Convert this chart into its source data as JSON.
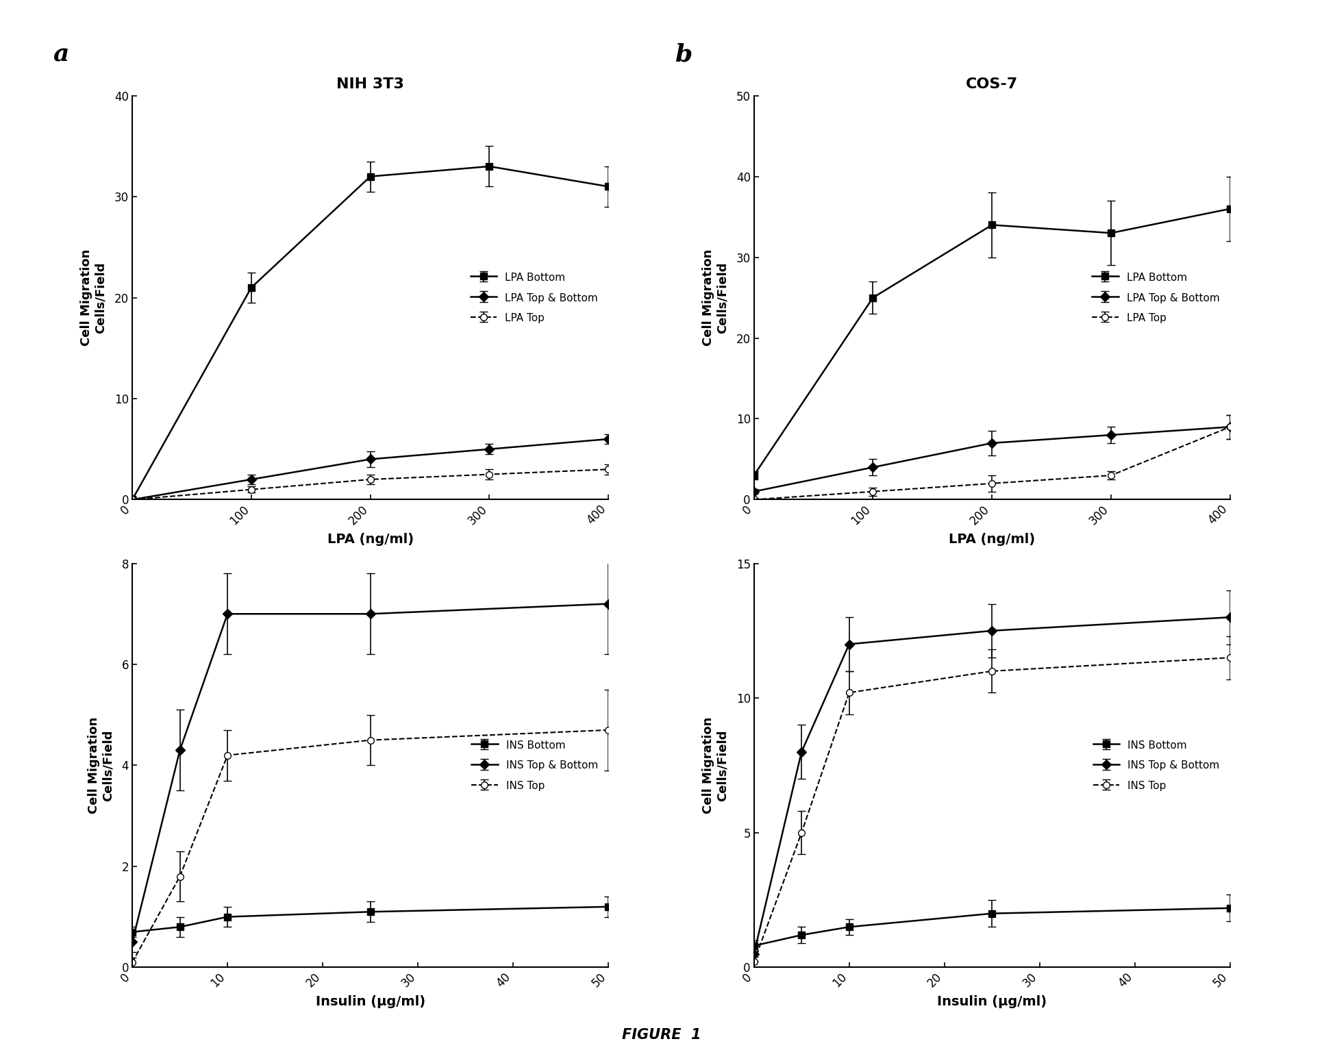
{
  "panel_a_lpa": {
    "title": "NIH 3T3",
    "xlabel": "LPA (ng/ml)",
    "ylabel": "Cell Migration\nCells/Field",
    "xlim": [
      0,
      400
    ],
    "ylim": [
      0,
      40
    ],
    "yticks": [
      0,
      10,
      20,
      30,
      40
    ],
    "xticks": [
      0,
      100,
      200,
      300,
      400
    ],
    "x": [
      0,
      100,
      200,
      300,
      400
    ],
    "bottom": {
      "y": [
        0,
        21,
        32,
        33,
        31
      ],
      "yerr": [
        0.3,
        1.5,
        1.5,
        2.0,
        2.0
      ],
      "label": "LPA Bottom"
    },
    "top_bottom": {
      "y": [
        0,
        2,
        4,
        5,
        6
      ],
      "yerr": [
        0.2,
        0.5,
        0.8,
        0.5,
        0.5
      ],
      "label": "LPA Top & Bottom"
    },
    "top": {
      "y": [
        0,
        1,
        2,
        2.5,
        3
      ],
      "yerr": [
        0.2,
        0.3,
        0.5,
        0.5,
        0.5
      ],
      "label": "LPA Top"
    }
  },
  "panel_b_lpa": {
    "title": "COS-7",
    "xlabel": "LPA (ng/ml)",
    "ylabel": "Cell Migration\nCells/Field",
    "xlim": [
      0,
      400
    ],
    "ylim": [
      0,
      50
    ],
    "yticks": [
      0,
      10,
      20,
      30,
      40,
      50
    ],
    "xticks": [
      0,
      100,
      200,
      300,
      400
    ],
    "x": [
      0,
      100,
      200,
      300,
      400
    ],
    "bottom": {
      "y": [
        3,
        25,
        34,
        33,
        36
      ],
      "yerr": [
        0.5,
        2.0,
        4.0,
        4.0,
        4.0
      ],
      "label": "LPA Bottom"
    },
    "top_bottom": {
      "y": [
        1,
        4,
        7,
        8,
        9
      ],
      "yerr": [
        0.3,
        1.0,
        1.5,
        1.0,
        1.5
      ],
      "label": "LPA Top & Bottom"
    },
    "top": {
      "y": [
        0,
        1,
        2,
        3,
        9
      ],
      "yerr": [
        0.2,
        0.5,
        1.0,
        0.5,
        1.5
      ],
      "label": "LPA Top"
    }
  },
  "panel_a_ins": {
    "xlabel": "Insulin (μg/ml)",
    "ylabel": "Cell Migration\nCells/Field",
    "xlim": [
      0,
      50
    ],
    "ylim": [
      0,
      8
    ],
    "yticks": [
      0,
      2,
      4,
      6,
      8
    ],
    "xticks": [
      0,
      10,
      20,
      30,
      40,
      50
    ],
    "x": [
      0,
      5,
      10,
      25,
      50
    ],
    "bottom": {
      "y": [
        0.7,
        0.8,
        1.0,
        1.1,
        1.2
      ],
      "yerr": [
        0.1,
        0.2,
        0.2,
        0.2,
        0.2
      ],
      "label": "INS Bottom"
    },
    "top_bottom": {
      "y": [
        0.5,
        4.3,
        7.0,
        7.0,
        7.2
      ],
      "yerr": [
        0.2,
        0.8,
        0.8,
        0.8,
        1.0
      ],
      "label": "INS Top & Bottom"
    },
    "top": {
      "y": [
        0.1,
        1.8,
        4.2,
        4.5,
        4.7
      ],
      "yerr": [
        0.1,
        0.5,
        0.5,
        0.5,
        0.8
      ],
      "label": "INS Top"
    }
  },
  "panel_b_ins": {
    "xlabel": "Insulin (μg/ml)",
    "ylabel": "Cell Migration\nCells/Field",
    "xlim": [
      0,
      50
    ],
    "ylim": [
      0,
      15
    ],
    "yticks": [
      0,
      5,
      10,
      15
    ],
    "xticks": [
      0,
      10,
      20,
      30,
      40,
      50
    ],
    "x": [
      0,
      5,
      10,
      25,
      50
    ],
    "bottom": {
      "y": [
        0.8,
        1.2,
        1.5,
        2.0,
        2.2
      ],
      "yerr": [
        0.2,
        0.3,
        0.3,
        0.5,
        0.5
      ],
      "label": "INS Bottom"
    },
    "top_bottom": {
      "y": [
        0.5,
        8.0,
        12.0,
        12.5,
        13.0
      ],
      "yerr": [
        0.3,
        1.0,
        1.0,
        1.0,
        1.0
      ],
      "label": "INS Top & Bottom"
    },
    "top": {
      "y": [
        0.2,
        5.0,
        10.2,
        11.0,
        11.5
      ],
      "yerr": [
        0.2,
        0.8,
        0.8,
        0.8,
        0.8
      ],
      "label": "INS Top"
    }
  },
  "figure_label": "FIGURE  1",
  "panel_a_label": "a",
  "panel_b_label": "b"
}
